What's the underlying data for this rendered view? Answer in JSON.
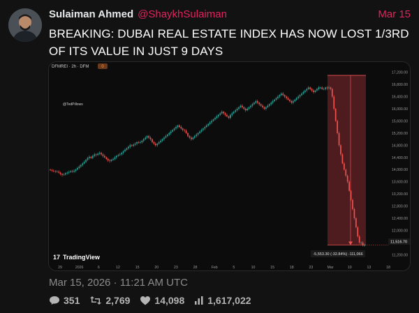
{
  "tweet": {
    "author_name": "Sulaiman Ahmed",
    "author_handle": "@ShaykhSulaiman",
    "date": "Mar 15",
    "text": "BREAKING: DUBAI REAL ESTATE INDEX HAS NOW LOST 1/3RD OF ITS VALUE IN JUST 9 DAYS",
    "timestamp": "Mar 15, 2026 · 11:21 AM UTC",
    "stats": {
      "replies": "351",
      "reposts": "2,769",
      "likes": "14,098",
      "views": "1,617,022"
    }
  },
  "chart": {
    "symbol_label": "DFMREI · 2h · DFM",
    "symbol_badge": "0",
    "watermark": "@TedPillows",
    "brand": "TradingView",
    "measure_label": "-5,553.30 (-32.84%) -111,066",
    "price_label": "11,516.70",
    "colors": {
      "up": "#26a69a",
      "down": "#ef5350",
      "zone": "#5a1e22"
    }
  },
  "chart_data": {
    "type": "candlestick",
    "y_ticks": [
      "17,200.00",
      "16,800.00",
      "16,400.00",
      "16,000.00",
      "15,600.00",
      "15,200.00",
      "14,800.00",
      "14,400.00",
      "14,000.00",
      "13,600.00",
      "13,200.00",
      "12,800.00",
      "12,400.00",
      "12,000.00",
      "11,600.00",
      "11,200.00"
    ],
    "y_tick_values": [
      17200,
      16800,
      16400,
      16000,
      15600,
      15200,
      14800,
      14400,
      14000,
      13600,
      13200,
      12800,
      12400,
      12000,
      11600,
      11200
    ],
    "x_ticks": [
      "29",
      "2026",
      "6",
      "12",
      "15",
      "20",
      "23",
      "28",
      "Feb",
      "5",
      "10",
      "15",
      "18",
      "23",
      "Mar",
      "10",
      "13",
      "18"
    ],
    "ylim": [
      11000,
      17400
    ],
    "current_price": 11516.7,
    "measure": {
      "change": -5553.3,
      "percent": -32.84
    },
    "close_series": [
      13980,
      13960,
      13950,
      13940,
      13930,
      13900,
      13850,
      13820,
      13840,
      13880,
      13900,
      13920,
      13950,
      13930,
      13960,
      14000,
      14050,
      14100,
      14150,
      14200,
      14250,
      14320,
      14380,
      14420,
      14380,
      14450,
      14500,
      14480,
      14520,
      14550,
      14500,
      14450,
      14400,
      14350,
      14300,
      14280,
      14320,
      14350,
      14400,
      14450,
      14480,
      14500,
      14550,
      14600,
      14650,
      14700,
      14750,
      14800,
      14780,
      14820,
      14850,
      14900,
      14880,
      14900,
      14950,
      15000,
      15050,
      15100,
      15050,
      15000,
      14900,
      14850,
      14800,
      14850,
      14900,
      14950,
      15000,
      15050,
      15100,
      15150,
      15200,
      15250,
      15300,
      15350,
      15400,
      15450,
      15400,
      15350,
      15300,
      15280,
      15200,
      15100,
      15050,
      15000,
      15050,
      15100,
      15150,
      15200,
      15250,
      15300,
      15350,
      15400,
      15450,
      15500,
      15550,
      15600,
      15650,
      15700,
      15750,
      15800,
      15850,
      15900,
      15850,
      15800,
      15750,
      15700,
      15800,
      15850,
      15900,
      15950,
      16000,
      16050,
      16100,
      16050,
      16000,
      15950,
      16000,
      16050,
      16100,
      16150,
      16200,
      16250,
      16200,
      16150,
      16100,
      16050,
      16000,
      16050,
      16100,
      16150,
      16200,
      16250,
      16300,
      16350,
      16400,
      16450,
      16500,
      16450,
      16400,
      16350,
      16300,
      16250,
      16200,
      16250,
      16300,
      16350,
      16400,
      16450,
      16500,
      16550,
      16600,
      16650,
      16700,
      16650,
      16600,
      16550,
      16600,
      16650,
      16700,
      16700,
      16650,
      16650,
      16700,
      16680,
      16700,
      16650,
      16400,
      16000,
      15600,
      15200,
      14800,
      14500,
      14200,
      14000,
      13800,
      13600,
      13300,
      13000,
      12700,
      12400,
      12100,
      11800,
      11600,
      11600,
      11500,
      11516.7
    ]
  }
}
